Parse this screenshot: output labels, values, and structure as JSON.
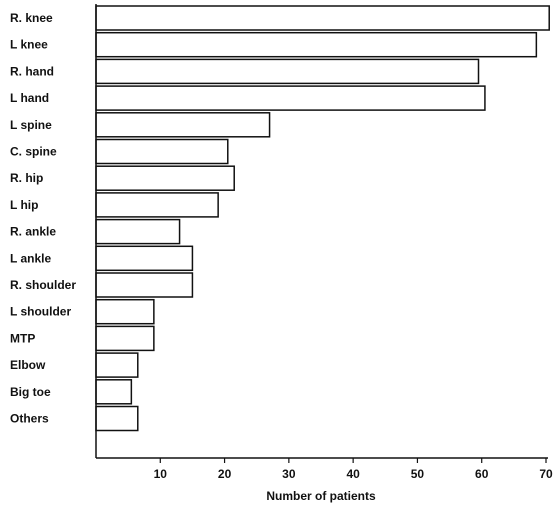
{
  "chart_data": {
    "type": "bar",
    "orientation": "horizontal",
    "categories": [
      "R. knee",
      "L knee",
      "R. hand",
      "L hand",
      "L spine",
      "C. spine",
      "R. hip",
      "L hip",
      "R. ankle",
      "L ankle",
      "R. shoulder",
      "L shoulder",
      "MTP",
      "Elbow",
      "Big toe",
      "Others"
    ],
    "values": [
      70.5,
      68.5,
      59.5,
      60.5,
      27,
      20.5,
      21.5,
      19,
      13,
      15,
      15,
      9,
      9,
      6.5,
      5.5,
      6.5
    ],
    "title": "",
    "xlabel": "Number of patients",
    "ylabel": "",
    "xlim": [
      0,
      70
    ],
    "xticks": [
      10,
      20,
      30,
      40,
      50,
      60,
      70
    ],
    "grid": false,
    "colors": {
      "bar_fill": "#ffffff",
      "bar_stroke": "#111111",
      "axis": "#111111"
    }
  }
}
